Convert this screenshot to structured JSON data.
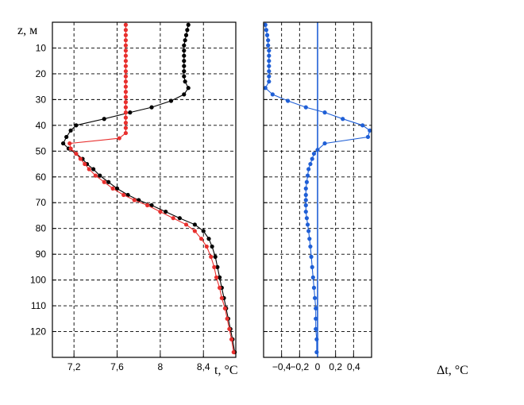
{
  "chart_data": [
    {
      "type": "line",
      "ylabel": "z, м",
      "xlabel": "t, °C",
      "xlim": [
        7.0,
        8.7
      ],
      "ylim": [
        130,
        0
      ],
      "y_reversed": true,
      "grid": true,
      "x_ticks": [
        "7,2",
        "7,6",
        "8",
        "8,4"
      ],
      "x_tick_values": [
        7.2,
        7.6,
        8.0,
        8.4
      ],
      "y_ticks": [
        "10",
        "20",
        "30",
        "40",
        "50",
        "60",
        "70",
        "80",
        "90",
        "100",
        "110",
        "120"
      ],
      "series": [
        {
          "color": "#000000",
          "points": [
            [
              8.26,
              1
            ],
            [
              8.25,
              3
            ],
            [
              8.24,
              5
            ],
            [
              8.23,
              7
            ],
            [
              8.22,
              9
            ],
            [
              8.22,
              11
            ],
            [
              8.22,
              13
            ],
            [
              8.22,
              15
            ],
            [
              8.22,
              17
            ],
            [
              8.22,
              19
            ],
            [
              8.22,
              21
            ],
            [
              8.23,
              23
            ],
            [
              8.26,
              25.5
            ],
            [
              8.22,
              28
            ],
            [
              8.1,
              30.5
            ],
            [
              7.92,
              33
            ],
            [
              7.72,
              35
            ],
            [
              7.48,
              37.5
            ],
            [
              7.22,
              40
            ],
            [
              7.17,
              42
            ],
            [
              7.13,
              44.5
            ],
            [
              7.1,
              47
            ],
            [
              7.15,
              49
            ],
            [
              7.22,
              51
            ],
            [
              7.28,
              53
            ],
            [
              7.32,
              55
            ],
            [
              7.38,
              57
            ],
            [
              7.44,
              59.5
            ],
            [
              7.52,
              62
            ],
            [
              7.6,
              64.5
            ],
            [
              7.7,
              67
            ],
            [
              7.8,
              69
            ],
            [
              7.92,
              71
            ],
            [
              8.05,
              73.5
            ],
            [
              8.18,
              76
            ],
            [
              8.32,
              78.5
            ],
            [
              8.4,
              81
            ],
            [
              8.45,
              84
            ],
            [
              8.48,
              87
            ],
            [
              8.51,
              91
            ],
            [
              8.53,
              95
            ],
            [
              8.55,
              99
            ],
            [
              8.57,
              103
            ],
            [
              8.59,
              107
            ],
            [
              8.61,
              111
            ],
            [
              8.63,
              115
            ],
            [
              8.65,
              119
            ],
            [
              8.67,
              123
            ],
            [
              8.69,
              128
            ]
          ]
        },
        {
          "color": "#e8302e",
          "points": [
            [
              7.68,
              1
            ],
            [
              7.68,
              3
            ],
            [
              7.68,
              5
            ],
            [
              7.68,
              7
            ],
            [
              7.68,
              9
            ],
            [
              7.68,
              11
            ],
            [
              7.68,
              13
            ],
            [
              7.68,
              15
            ],
            [
              7.68,
              17
            ],
            [
              7.68,
              19
            ],
            [
              7.68,
              21
            ],
            [
              7.68,
              23
            ],
            [
              7.68,
              25
            ],
            [
              7.68,
              27
            ],
            [
              7.68,
              29
            ],
            [
              7.68,
              31
            ],
            [
              7.68,
              33
            ],
            [
              7.68,
              35
            ],
            [
              7.68,
              37
            ],
            [
              7.68,
              39
            ],
            [
              7.68,
              41
            ],
            [
              7.68,
              43
            ],
            [
              7.62,
              45
            ],
            [
              7.16,
              47
            ],
            [
              7.17,
              49
            ],
            [
              7.22,
              51
            ],
            [
              7.26,
              53
            ],
            [
              7.3,
              55
            ],
            [
              7.34,
              57
            ],
            [
              7.4,
              59.5
            ],
            [
              7.48,
              62
            ],
            [
              7.56,
              64.5
            ],
            [
              7.66,
              67
            ],
            [
              7.76,
              69
            ],
            [
              7.88,
              71
            ],
            [
              8.0,
              73.5
            ],
            [
              8.12,
              76
            ],
            [
              8.24,
              78.5
            ],
            [
              8.32,
              81
            ],
            [
              8.38,
              84
            ],
            [
              8.43,
              87
            ],
            [
              8.47,
              91
            ],
            [
              8.5,
              95
            ],
            [
              8.52,
              99
            ],
            [
              8.55,
              103
            ],
            [
              8.57,
              107
            ],
            [
              8.6,
              111
            ],
            [
              8.62,
              115
            ],
            [
              8.64,
              119
            ],
            [
              8.66,
              123
            ],
            [
              8.68,
              128
            ]
          ]
        }
      ]
    },
    {
      "type": "line",
      "xlabel": "Δt, °C",
      "xlim": [
        -0.6,
        0.6
      ],
      "ylim": [
        130,
        0
      ],
      "y_reversed": true,
      "grid": true,
      "x_ticks": [
        "−0,4",
        "−0,2",
        "0",
        "0,2",
        "0,4"
      ],
      "x_tick_values": [
        -0.4,
        -0.2,
        0.0,
        0.2,
        0.4
      ],
      "reference_line_x": 0,
      "series": [
        {
          "color": "#1f5fd6",
          "points": [
            [
              -0.58,
              1
            ],
            [
              -0.57,
              3
            ],
            [
              -0.56,
              5
            ],
            [
              -0.55,
              7
            ],
            [
              -0.55,
              9
            ],
            [
              -0.54,
              11
            ],
            [
              -0.54,
              13
            ],
            [
              -0.54,
              15
            ],
            [
              -0.54,
              17
            ],
            [
              -0.54,
              19
            ],
            [
              -0.54,
              21
            ],
            [
              -0.54,
              23
            ],
            [
              -0.58,
              25.5
            ],
            [
              -0.5,
              28
            ],
            [
              -0.33,
              30.5
            ],
            [
              -0.13,
              33
            ],
            [
              0.08,
              35
            ],
            [
              0.28,
              37.5
            ],
            [
              0.5,
              40
            ],
            [
              0.58,
              42
            ],
            [
              0.56,
              44.5
            ],
            [
              0.08,
              47
            ],
            [
              0.0,
              49.5
            ],
            [
              -0.04,
              51
            ],
            [
              -0.06,
              53
            ],
            [
              -0.08,
              55
            ],
            [
              -0.1,
              57
            ],
            [
              -0.11,
              59.5
            ],
            [
              -0.12,
              62
            ],
            [
              -0.13,
              64.5
            ],
            [
              -0.13,
              67
            ],
            [
              -0.13,
              69
            ],
            [
              -0.13,
              71
            ],
            [
              -0.13,
              73.5
            ],
            [
              -0.12,
              76
            ],
            [
              -0.11,
              78.5
            ],
            [
              -0.1,
              81
            ],
            [
              -0.09,
              84
            ],
            [
              -0.08,
              87
            ],
            [
              -0.07,
              91
            ],
            [
              -0.06,
              95
            ],
            [
              -0.05,
              99
            ],
            [
              -0.04,
              103
            ],
            [
              -0.03,
              107
            ],
            [
              -0.02,
              111
            ],
            [
              -0.02,
              115
            ],
            [
              -0.02,
              119
            ],
            [
              -0.01,
              123
            ],
            [
              -0.01,
              128
            ]
          ]
        }
      ]
    }
  ]
}
